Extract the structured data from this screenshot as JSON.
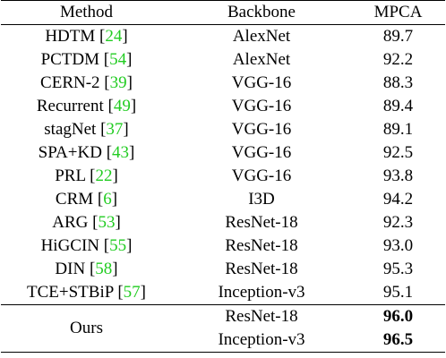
{
  "table": {
    "headers": [
      "Method",
      "Backbone",
      "MPCA"
    ],
    "rows": [
      {
        "method": "HDTM",
        "ref": "24",
        "backbone": "AlexNet",
        "mpca": "89.7"
      },
      {
        "method": "PCTDM",
        "ref": "54",
        "backbone": "AlexNet",
        "mpca": "92.2"
      },
      {
        "method": "CERN-2",
        "ref": "39",
        "backbone": "VGG-16",
        "mpca": "88.3"
      },
      {
        "method": "Recurrent",
        "ref": "49",
        "backbone": "VGG-16",
        "mpca": "89.4"
      },
      {
        "method": "stagNet",
        "ref": "37",
        "backbone": "VGG-16",
        "mpca": "89.1"
      },
      {
        "method": "SPA+KD",
        "ref": "43",
        "backbone": "VGG-16",
        "mpca": "92.5"
      },
      {
        "method": "PRL",
        "ref": "22",
        "backbone": "VGG-16",
        "mpca": "93.8"
      },
      {
        "method": "CRM",
        "ref": "6",
        "backbone": "I3D",
        "mpca": "94.2"
      },
      {
        "method": "ARG",
        "ref": "53",
        "backbone": "ResNet-18",
        "mpca": "92.3"
      },
      {
        "method": "HiGCIN",
        "ref": "55",
        "backbone": "ResNet-18",
        "mpca": "93.0"
      },
      {
        "method": "DIN",
        "ref": "58",
        "backbone": "ResNet-18",
        "mpca": "95.3"
      },
      {
        "method": "TCE+STBiP",
        "ref": "57",
        "backbone": "Inception-v3",
        "mpca": "95.1"
      }
    ],
    "ours": {
      "method": "Ours",
      "rows": [
        {
          "backbone": "ResNet-18",
          "mpca": "96.0"
        },
        {
          "backbone": "Inception-v3",
          "mpca": "96.5"
        }
      ]
    },
    "colors": {
      "reference_link": "#22cc22"
    }
  }
}
